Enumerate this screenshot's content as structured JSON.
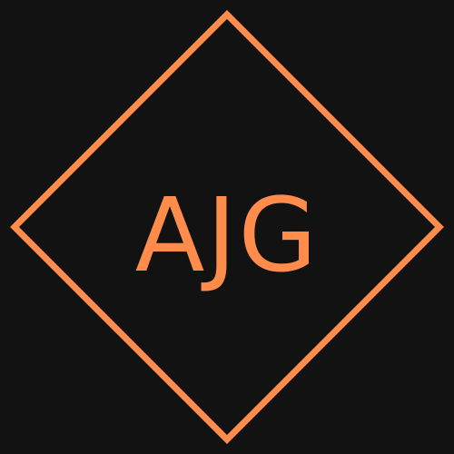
{
  "logo": {
    "monogram": "AJG",
    "background_color": "#121212",
    "accent_color": "#FF8C4A",
    "frame_shape": "diamond"
  }
}
